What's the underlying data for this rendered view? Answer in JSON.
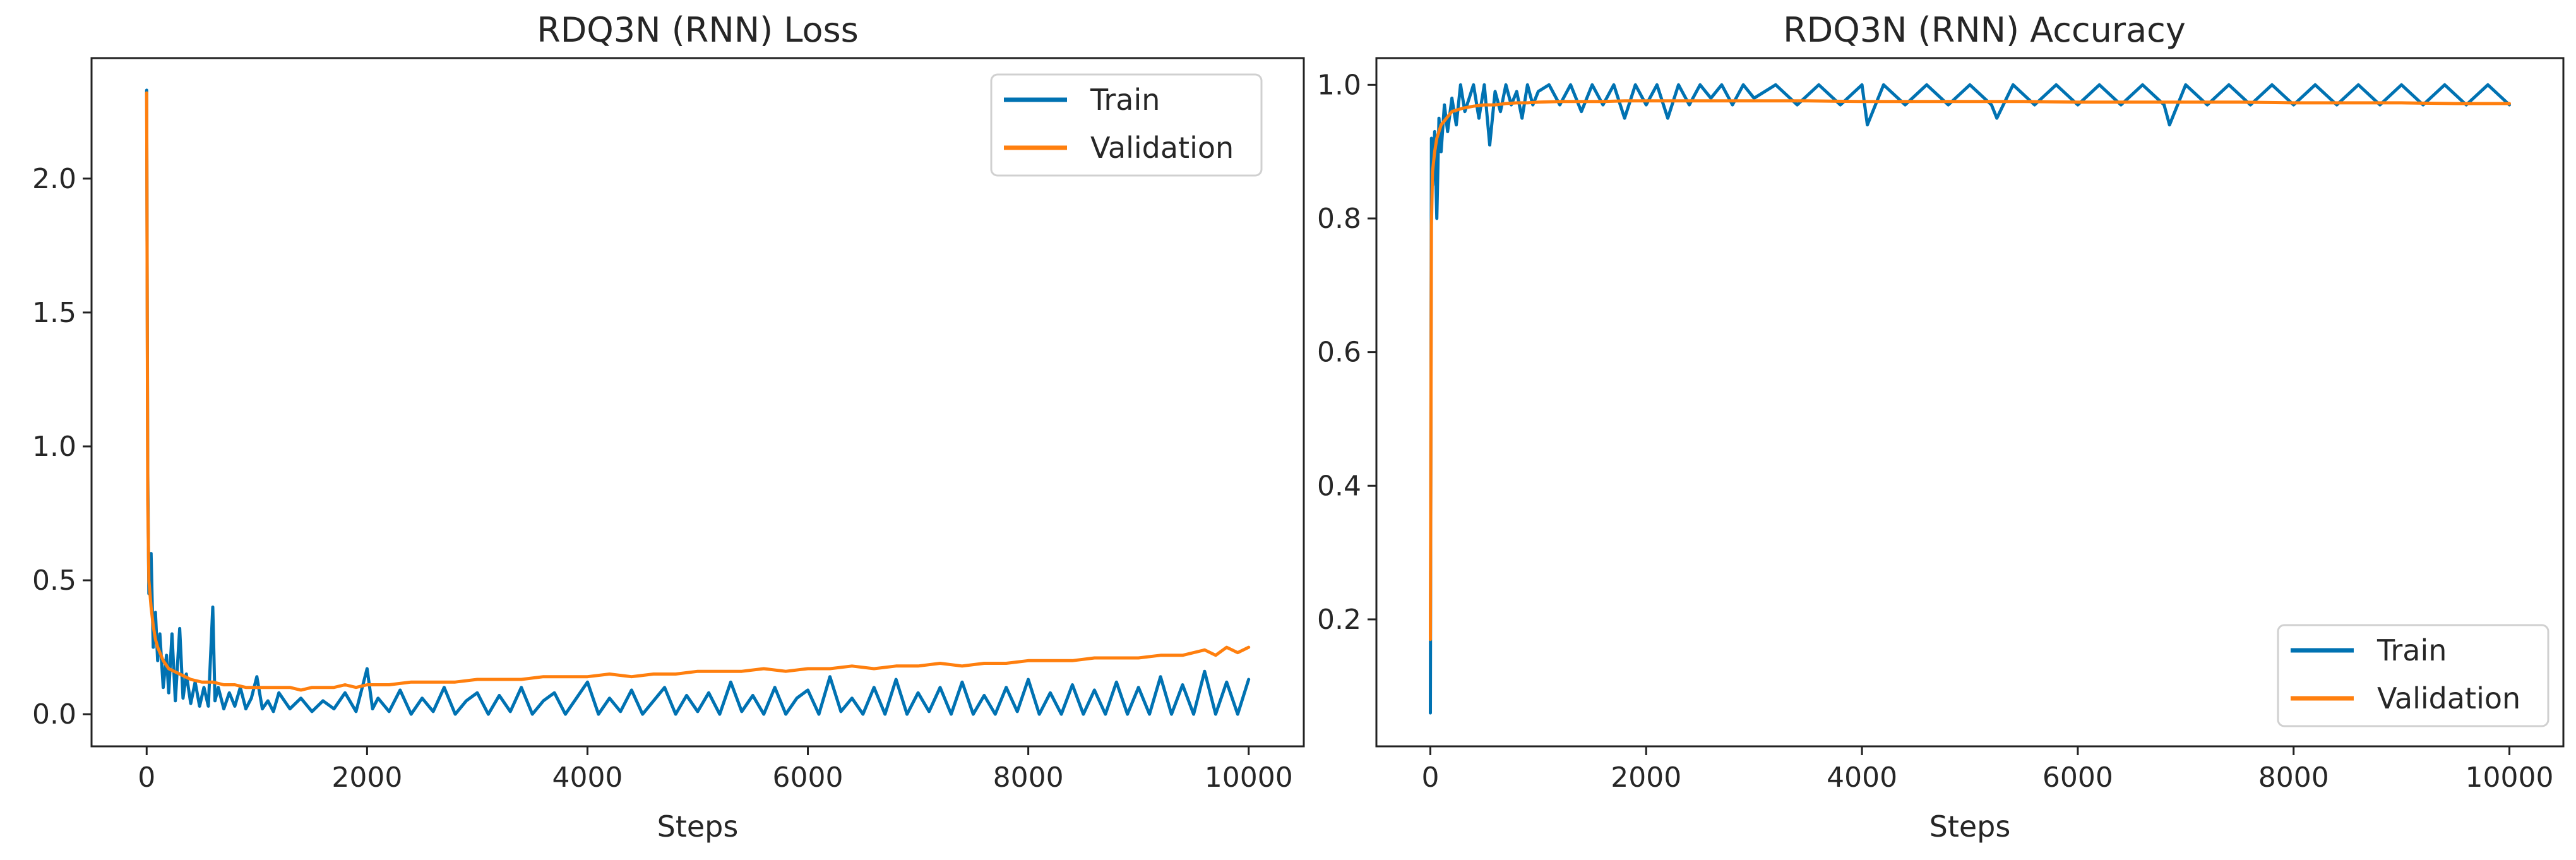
{
  "chart_data": [
    {
      "type": "line",
      "title": "RDQ3N (RNN) Loss",
      "xlabel": "Steps",
      "ylabel": "",
      "xlim": [
        -500,
        10500
      ],
      "ylim": [
        -0.12,
        2.45
      ],
      "xticks": [
        0,
        2000,
        4000,
        6000,
        8000,
        10000
      ],
      "xtick_labels": [
        "0",
        "2000",
        "4000",
        "6000",
        "8000",
        "10000"
      ],
      "yticks": [
        0.0,
        0.5,
        1.0,
        1.5,
        2.0
      ],
      "ytick_labels": [
        "0.0",
        "0.5",
        "1.0",
        "1.5",
        "2.0"
      ],
      "legend": {
        "position": "top-right",
        "entries": [
          "Train",
          "Validation"
        ]
      },
      "series": [
        {
          "name": "Train",
          "color": "#0072b2",
          "x": [
            0,
            10,
            20,
            40,
            60,
            80,
            100,
            120,
            150,
            180,
            200,
            230,
            260,
            300,
            330,
            360,
            400,
            440,
            480,
            520,
            560,
            600,
            620,
            650,
            700,
            750,
            800,
            850,
            900,
            950,
            1000,
            1050,
            1100,
            1150,
            1200,
            1300,
            1400,
            1500,
            1600,
            1700,
            1800,
            1900,
            2000,
            2050,
            2100,
            2200,
            2300,
            2400,
            2500,
            2600,
            2700,
            2800,
            2900,
            3000,
            3100,
            3200,
            3300,
            3400,
            3500,
            3600,
            3700,
            3800,
            3900,
            4000,
            4100,
            4200,
            4300,
            4400,
            4500,
            4600,
            4700,
            4800,
            4900,
            5000,
            5100,
            5200,
            5300,
            5400,
            5500,
            5600,
            5700,
            5800,
            5900,
            6000,
            6100,
            6200,
            6300,
            6400,
            6500,
            6600,
            6700,
            6800,
            6900,
            7000,
            7100,
            7200,
            7300,
            7400,
            7500,
            7600,
            7700,
            7800,
            7900,
            8000,
            8100,
            8200,
            8300,
            8400,
            8500,
            8600,
            8700,
            8800,
            8900,
            9000,
            9100,
            9200,
            9300,
            9400,
            9500,
            9600,
            9700,
            9800,
            9900,
            10000
          ],
          "y": [
            2.33,
            0.9,
            0.45,
            0.6,
            0.25,
            0.38,
            0.2,
            0.3,
            0.1,
            0.22,
            0.08,
            0.3,
            0.05,
            0.32,
            0.06,
            0.15,
            0.04,
            0.12,
            0.03,
            0.1,
            0.03,
            0.4,
            0.05,
            0.1,
            0.02,
            0.08,
            0.03,
            0.1,
            0.02,
            0.06,
            0.14,
            0.02,
            0.05,
            0.01,
            0.08,
            0.02,
            0.06,
            0.01,
            0.05,
            0.02,
            0.08,
            0.01,
            0.17,
            0.02,
            0.06,
            0.01,
            0.09,
            0.0,
            0.06,
            0.01,
            0.1,
            0.0,
            0.05,
            0.08,
            0.0,
            0.07,
            0.01,
            0.1,
            0.0,
            0.05,
            0.08,
            0.0,
            0.06,
            0.12,
            0.0,
            0.06,
            0.01,
            0.09,
            0.0,
            0.05,
            0.1,
            0.0,
            0.07,
            0.01,
            0.08,
            0.0,
            0.12,
            0.01,
            0.07,
            0.0,
            0.1,
            0.0,
            0.06,
            0.09,
            0.0,
            0.14,
            0.01,
            0.06,
            0.0,
            0.1,
            0.0,
            0.13,
            0.0,
            0.08,
            0.01,
            0.1,
            0.0,
            0.12,
            0.0,
            0.07,
            0.0,
            0.1,
            0.01,
            0.13,
            0.0,
            0.08,
            0.0,
            0.11,
            0.0,
            0.09,
            0.0,
            0.12,
            0.0,
            0.1,
            0.0,
            0.14,
            0.0,
            0.11,
            0.0,
            0.16,
            0.0,
            0.12,
            0.0,
            0.13
          ]
        },
        {
          "name": "Validation",
          "color": "#ff7f0e",
          "x": [
            0,
            10,
            20,
            40,
            60,
            80,
            100,
            150,
            200,
            250,
            300,
            400,
            500,
            600,
            700,
            800,
            900,
            1000,
            1100,
            1200,
            1300,
            1400,
            1500,
            1600,
            1700,
            1800,
            1900,
            2000,
            2200,
            2400,
            2600,
            2800,
            3000,
            3200,
            3400,
            3600,
            3800,
            4000,
            4200,
            4400,
            4600,
            4800,
            5000,
            5200,
            5400,
            5600,
            5800,
            6000,
            6200,
            6400,
            6600,
            6800,
            7000,
            7200,
            7400,
            7600,
            7800,
            8000,
            8200,
            8400,
            8600,
            8800,
            9000,
            9200,
            9400,
            9600,
            9700,
            9800,
            9900,
            10000
          ],
          "y": [
            2.32,
            0.8,
            0.5,
            0.4,
            0.33,
            0.28,
            0.25,
            0.2,
            0.17,
            0.16,
            0.15,
            0.13,
            0.12,
            0.12,
            0.11,
            0.11,
            0.1,
            0.1,
            0.1,
            0.1,
            0.1,
            0.09,
            0.1,
            0.1,
            0.1,
            0.11,
            0.1,
            0.11,
            0.11,
            0.12,
            0.12,
            0.12,
            0.13,
            0.13,
            0.13,
            0.14,
            0.14,
            0.14,
            0.15,
            0.14,
            0.15,
            0.15,
            0.16,
            0.16,
            0.16,
            0.17,
            0.16,
            0.17,
            0.17,
            0.18,
            0.17,
            0.18,
            0.18,
            0.19,
            0.18,
            0.19,
            0.19,
            0.2,
            0.2,
            0.2,
            0.21,
            0.21,
            0.21,
            0.22,
            0.22,
            0.24,
            0.22,
            0.25,
            0.23,
            0.25
          ]
        }
      ]
    },
    {
      "type": "line",
      "title": "RDQ3N (RNN) Accuracy",
      "xlabel": "Steps",
      "ylabel": "",
      "xlim": [
        -500,
        10500
      ],
      "ylim": [
        0.01,
        1.04
      ],
      "xticks": [
        0,
        2000,
        4000,
        6000,
        8000,
        10000
      ],
      "xtick_labels": [
        "0",
        "2000",
        "4000",
        "6000",
        "8000",
        "10000"
      ],
      "yticks": [
        0.2,
        0.4,
        0.6,
        0.8,
        1.0
      ],
      "ytick_labels": [
        "0.2",
        "0.4",
        "0.6",
        "0.8",
        "1.0"
      ],
      "legend": {
        "position": "bottom-right",
        "entries": [
          "Train",
          "Validation"
        ]
      },
      "series": [
        {
          "name": "Train",
          "color": "#0072b2",
          "x": [
            0,
            10,
            20,
            40,
            60,
            80,
            100,
            130,
            160,
            200,
            240,
            280,
            320,
            360,
            400,
            450,
            500,
            550,
            600,
            650,
            700,
            750,
            800,
            850,
            900,
            950,
            1000,
            1100,
            1200,
            1300,
            1400,
            1500,
            1600,
            1700,
            1800,
            1900,
            2000,
            2100,
            2200,
            2300,
            2400,
            2500,
            2600,
            2700,
            2800,
            2900,
            3000,
            3200,
            3400,
            3600,
            3800,
            4000,
            4050,
            4200,
            4400,
            4600,
            4800,
            5000,
            5200,
            5250,
            5400,
            5600,
            5800,
            6000,
            6200,
            6400,
            6600,
            6800,
            6850,
            7000,
            7200,
            7400,
            7600,
            7800,
            8000,
            8200,
            8400,
            8600,
            8800,
            9000,
            9200,
            9400,
            9600,
            9800,
            10000
          ],
          "y": [
            0.06,
            0.92,
            0.85,
            0.93,
            0.8,
            0.95,
            0.9,
            0.97,
            0.93,
            0.98,
            0.94,
            1.0,
            0.96,
            0.98,
            1.0,
            0.95,
            1.0,
            0.91,
            0.99,
            0.96,
            1.0,
            0.97,
            0.99,
            0.95,
            1.0,
            0.97,
            0.99,
            1.0,
            0.97,
            1.0,
            0.96,
            1.0,
            0.97,
            1.0,
            0.95,
            1.0,
            0.97,
            1.0,
            0.95,
            1.0,
            0.97,
            1.0,
            0.98,
            1.0,
            0.97,
            1.0,
            0.98,
            1.0,
            0.97,
            1.0,
            0.97,
            1.0,
            0.94,
            1.0,
            0.97,
            1.0,
            0.97,
            1.0,
            0.97,
            0.95,
            1.0,
            0.97,
            1.0,
            0.97,
            1.0,
            0.97,
            1.0,
            0.97,
            0.94,
            1.0,
            0.97,
            1.0,
            0.97,
            1.0,
            0.97,
            1.0,
            0.97,
            1.0,
            0.97,
            1.0,
            0.97,
            1.0,
            0.97,
            1.0,
            0.97
          ]
        },
        {
          "name": "Validation",
          "color": "#ff7f0e",
          "x": [
            0,
            10,
            20,
            40,
            60,
            80,
            100,
            150,
            200,
            300,
            400,
            500,
            600,
            700,
            800,
            900,
            1000,
            1200,
            1400,
            1600,
            1800,
            2000,
            2200,
            2400,
            2600,
            2800,
            3000,
            3500,
            4000,
            4500,
            5000,
            5500,
            6000,
            6500,
            7000,
            7500,
            8000,
            8500,
            9000,
            9500,
            10000
          ],
          "y": [
            0.17,
            0.79,
            0.87,
            0.9,
            0.92,
            0.93,
            0.94,
            0.95,
            0.96,
            0.965,
            0.968,
            0.97,
            0.97,
            0.972,
            0.973,
            0.973,
            0.974,
            0.975,
            0.975,
            0.975,
            0.976,
            0.976,
            0.976,
            0.976,
            0.976,
            0.976,
            0.976,
            0.976,
            0.975,
            0.975,
            0.975,
            0.975,
            0.974,
            0.974,
            0.974,
            0.974,
            0.973,
            0.973,
            0.973,
            0.972,
            0.972
          ]
        }
      ]
    }
  ]
}
